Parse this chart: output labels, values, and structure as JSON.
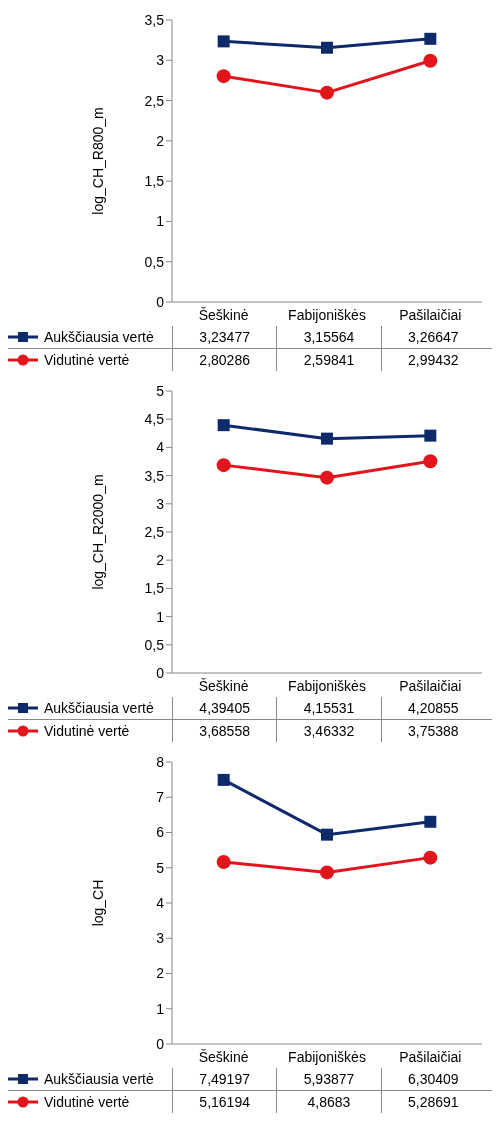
{
  "chart_data": [
    {
      "type": "line",
      "ylabel": "log_CH_R800_m",
      "categories": [
        "Šeškinė",
        "Fabijoniškės",
        "Pašilaičiai"
      ],
      "ylim": [
        0,
        3.5
      ],
      "yticks": [
        0,
        {
          "value": 0.5,
          "label": "0,5"
        },
        1,
        {
          "value": 1.5,
          "label": "1,5"
        },
        2,
        {
          "value": 2.5,
          "label": "2,5"
        },
        3,
        {
          "value": 3.5,
          "label": "3,5"
        }
      ],
      "legend": "bottom",
      "series": [
        {
          "name": "Aukščiausia vertė",
          "color": "#0f2a6b",
          "marker": "square",
          "values": [
            3.23477,
            3.15564,
            3.26647
          ],
          "value_labels": [
            "3,23477",
            "3,15564",
            "3,26647"
          ]
        },
        {
          "name": "Vidutinė vertė",
          "color": "#e2141c",
          "marker": "circle",
          "values": [
            2.80286,
            2.59841,
            2.99432
          ],
          "value_labels": [
            "2,80286",
            "2,59841",
            "2,99432"
          ]
        }
      ]
    },
    {
      "type": "line",
      "ylabel": "log_CH_R2000_m",
      "categories": [
        "Šeškinė",
        "Fabijoniškės",
        "Pašilaičiai"
      ],
      "ylim": [
        0,
        5
      ],
      "yticks": [
        0,
        {
          "value": 0.5,
          "label": "0,5"
        },
        1,
        {
          "value": 1.5,
          "label": "1,5"
        },
        2,
        {
          "value": 2.5,
          "label": "2,5"
        },
        3,
        {
          "value": 3.5,
          "label": "3,5"
        },
        4,
        {
          "value": 4.5,
          "label": "4,5"
        },
        5
      ],
      "legend": "bottom",
      "series": [
        {
          "name": "Aukščiausia vertė",
          "color": "#0f2a6b",
          "marker": "square",
          "values": [
            4.39405,
            4.15531,
            4.20855
          ],
          "value_labels": [
            "4,39405",
            "4,15531",
            "4,20855"
          ]
        },
        {
          "name": "Vidutinė vertė",
          "color": "#e2141c",
          "marker": "circle",
          "values": [
            3.68558,
            3.46332,
            3.75388
          ],
          "value_labels": [
            "3,68558",
            "3,46332",
            "3,75388"
          ]
        }
      ]
    },
    {
      "type": "line",
      "ylabel": "log_CH",
      "categories": [
        "Šeškinė",
        "Fabijoniškės",
        "Pašilaičiai"
      ],
      "ylim": [
        0,
        8
      ],
      "yticks": [
        0,
        1,
        2,
        3,
        4,
        5,
        6,
        7,
        8
      ],
      "legend": "bottom",
      "series": [
        {
          "name": "Aukščiausia vertė",
          "color": "#0f2a6b",
          "marker": "square",
          "values": [
            7.49197,
            5.93877,
            6.30409
          ],
          "value_labels": [
            "7,49197",
            "5,93877",
            "6,30409"
          ]
        },
        {
          "name": "Vidutinė vertė",
          "color": "#e2141c",
          "marker": "circle",
          "values": [
            5.16194,
            4.8683,
            5.28691
          ],
          "value_labels": [
            "5,16194",
            "4,8683",
            "5,28691"
          ]
        }
      ]
    }
  ]
}
